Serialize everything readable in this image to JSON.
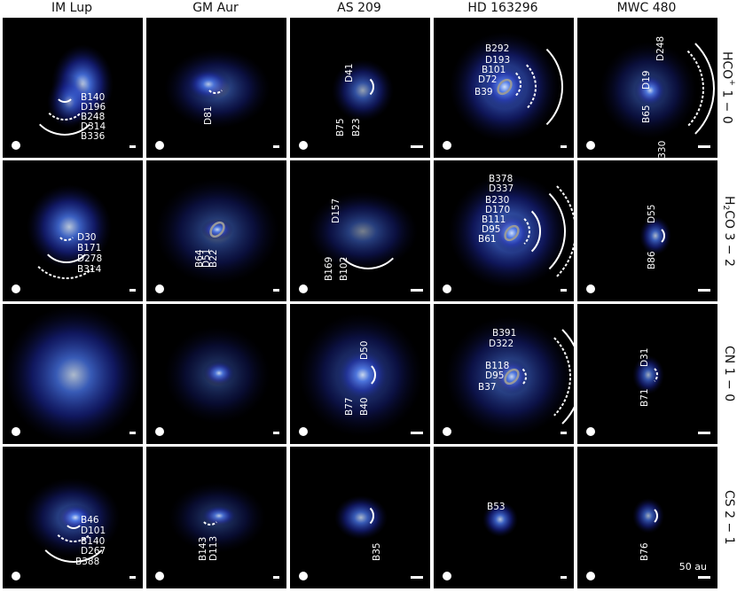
{
  "columns": [
    "IM Lup",
    "GM Aur",
    "AS 209",
    "HD 163296",
    "MWC 480"
  ],
  "rows": [
    {
      "id": "hco",
      "main": "HCO",
      "sup": "+",
      "sub": "",
      "rest": " 1 − 0"
    },
    {
      "id": "h2co",
      "main": "H",
      "sup": "",
      "sub": "2",
      "rest": "CO 3 − 2"
    },
    {
      "id": "cn",
      "main": "CN",
      "sup": "",
      "sub": "",
      "rest": " 1 − 0"
    },
    {
      "id": "cs",
      "main": "CS",
      "sup": "",
      "sub": "",
      "rest": " 2 − 1"
    }
  ],
  "scale_label": "50 au",
  "labels": {
    "r0c0": [
      "B140",
      "D196",
      "B248",
      "D314",
      "B336"
    ],
    "r0c1": [
      "D81"
    ],
    "r0c2": [
      "D41",
      "B75",
      "B23"
    ],
    "r0c3": [
      "B292",
      "D193",
      "B101",
      "D72",
      "B39"
    ],
    "r0c4": [
      "D248",
      "D19",
      "B65",
      "B330"
    ],
    "r1c0": [
      "D30",
      "B171",
      "D278",
      "B314"
    ],
    "r1c1": [
      "B64",
      "D51",
      "B22"
    ],
    "r1c2": [
      "D157",
      "B169",
      "B102"
    ],
    "r1c3": [
      "B378",
      "D337",
      "B230",
      "D170",
      "B111",
      "D95",
      "B61"
    ],
    "r1c4": [
      "D55",
      "B86"
    ],
    "r2c2": [
      "D50",
      "B77",
      "B40"
    ],
    "r2c3": [
      "B391",
      "D322",
      "B118",
      "D95",
      "B37"
    ],
    "r2c4": [
      "D31",
      "B71"
    ],
    "r3c0": [
      "B46",
      "D101",
      "B140",
      "D267",
      "B388"
    ],
    "r3c1": [
      "B143",
      "D113"
    ],
    "r3c2": [
      "B35"
    ],
    "r3c3": [
      "B53"
    ],
    "r3c4": [
      "B76"
    ]
  }
}
